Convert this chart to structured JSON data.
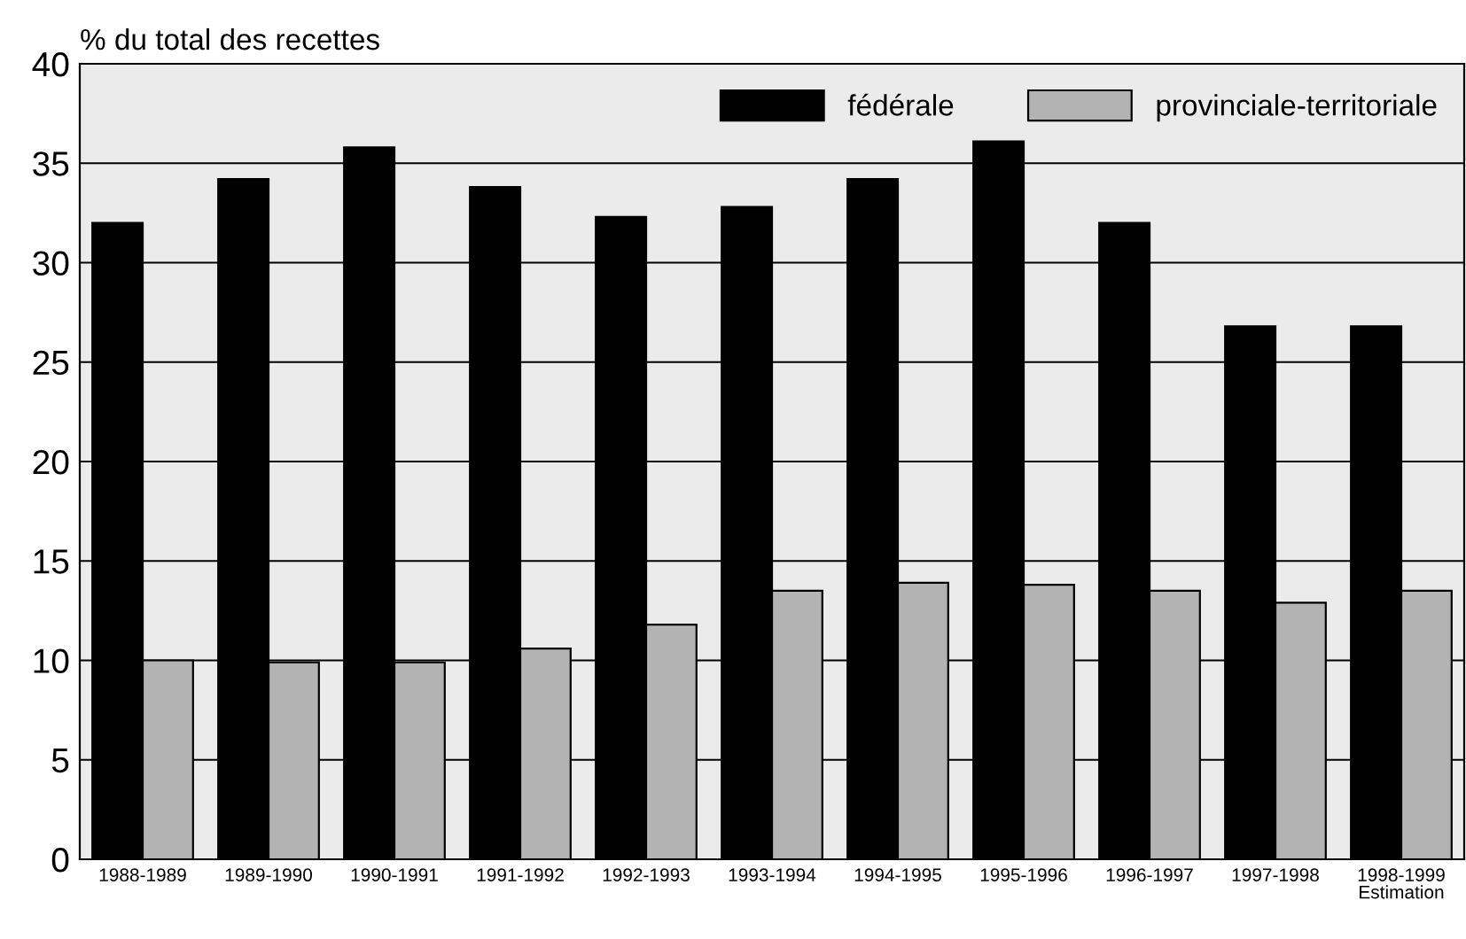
{
  "chart_data": {
    "type": "bar",
    "ylabel": "% du total des recettes",
    "categories": [
      "1988-1989",
      "1989-1990",
      "1990-1991",
      "1991-1992",
      "1992-1993",
      "1993-1994",
      "1994-1995",
      "1995-1996",
      "1996-1997",
      "1997-1998",
      "1998-1999\nEstimation"
    ],
    "series": [
      {
        "name": "fédérale",
        "color": "#000000",
        "values": [
          32,
          34.2,
          35.8,
          33.8,
          32.3,
          32.8,
          34.2,
          36.1,
          32,
          26.8,
          26.8
        ]
      },
      {
        "name": "provinciale-territoriale",
        "color": "#b3b3b3",
        "values": [
          10,
          9.9,
          9.9,
          10.6,
          11.8,
          13.5,
          13.9,
          13.8,
          13.5,
          12.9,
          13.5
        ]
      }
    ],
    "ylim": [
      0,
      40
    ],
    "yticks": [
      0,
      5,
      10,
      15,
      20,
      25,
      30,
      35,
      40
    ],
    "grid": "y",
    "legend": "top right"
  }
}
